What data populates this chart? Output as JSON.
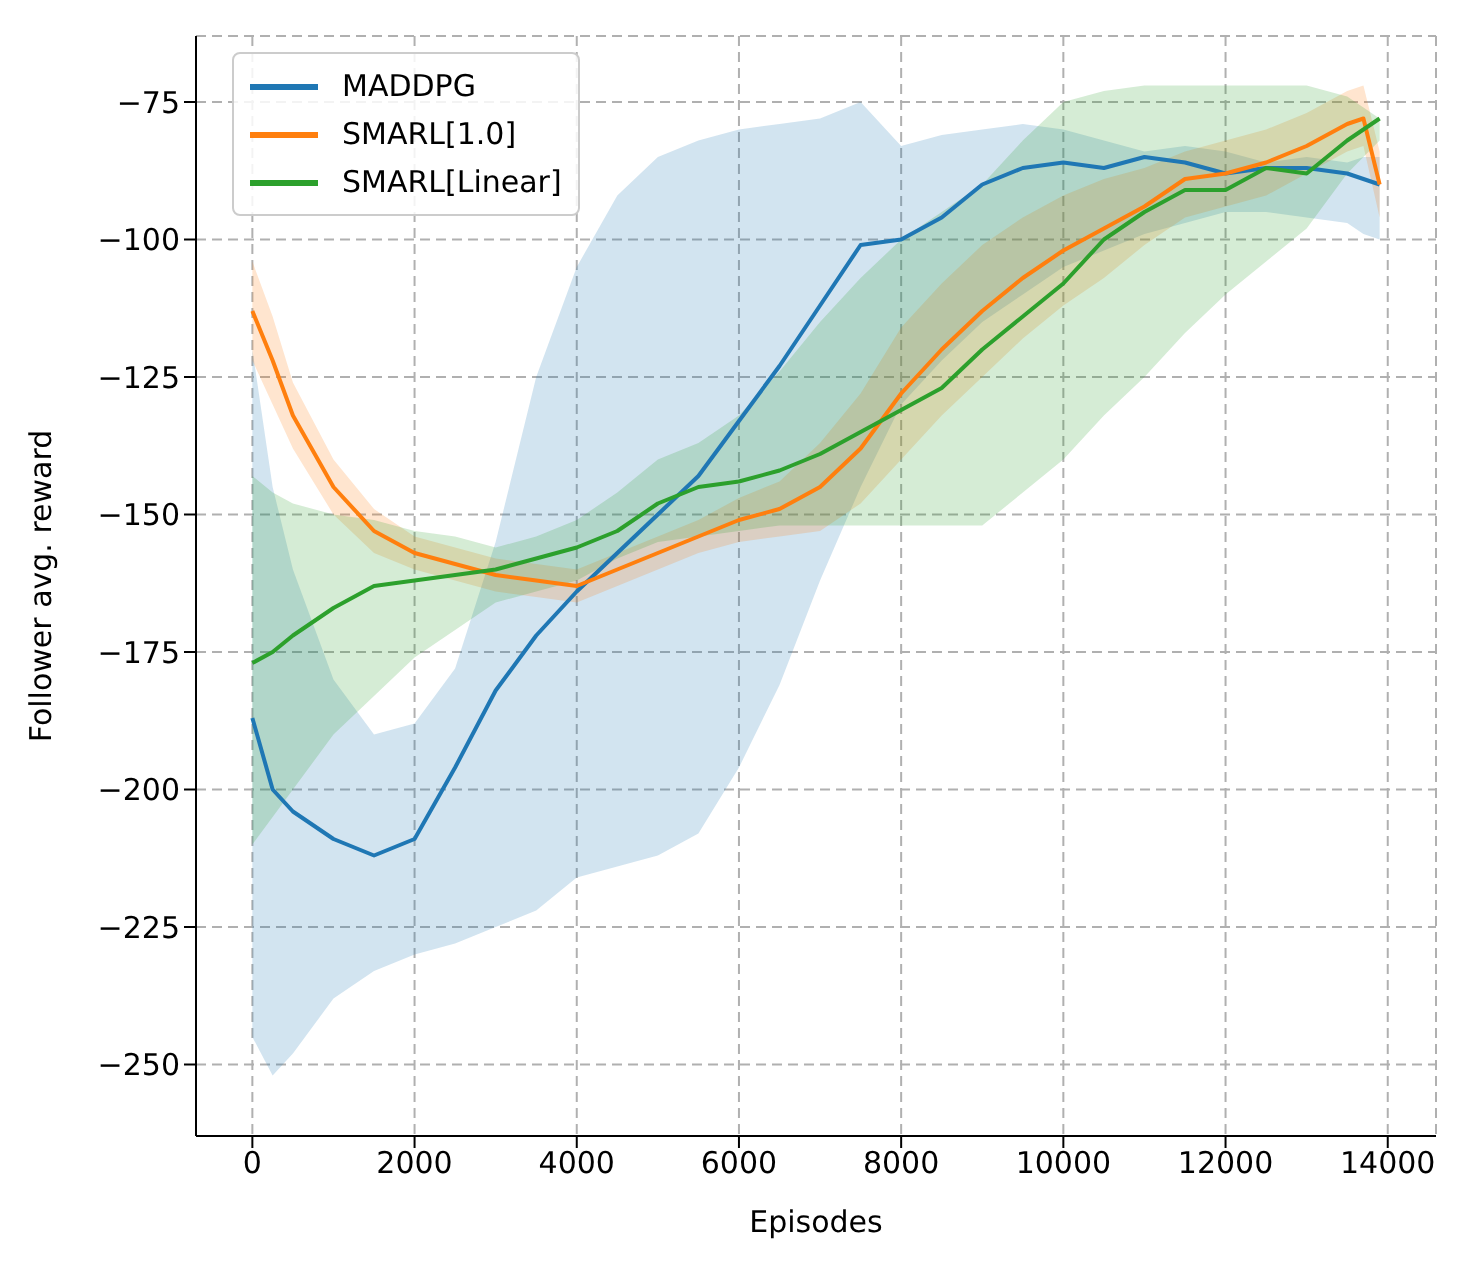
{
  "chart_data": {
    "type": "line",
    "xlabel": "Episodes",
    "ylabel": "Follower avg. reward",
    "x": [
      0,
      250,
      500,
      1000,
      1500,
      2000,
      2500,
      3000,
      3500,
      4000,
      4500,
      5000,
      5500,
      6000,
      6500,
      7000,
      7500,
      8000,
      8500,
      9000,
      9500,
      10000,
      10500,
      11000,
      11500,
      12000,
      12500,
      13000,
      13500,
      13700,
      13900
    ],
    "series": [
      {
        "name": "MADDPG",
        "color": "#1f77b4",
        "values": [
          -187,
          -200,
          -204,
          -209,
          -212,
          -209,
          -196,
          -182,
          -172,
          -164,
          -157,
          -150,
          -143,
          -133,
          -123,
          -112,
          -101,
          -100,
          -96,
          -90,
          -87,
          -86,
          -87,
          -85,
          -86,
          -88,
          -87,
          -87,
          -88,
          -89,
          -90
        ],
        "lower": [
          -245,
          -252,
          -248,
          -238,
          -233,
          -230,
          -228,
          -225,
          -222,
          -216,
          -214,
          -212,
          -208,
          -196,
          -181,
          -162,
          -145,
          -130,
          -122,
          -115,
          -110,
          -105,
          -102,
          -99,
          -97,
          -95,
          -95,
          -96,
          -97,
          -99,
          -100
        ],
        "upper": [
          -120,
          -145,
          -160,
          -180,
          -190,
          -188,
          -178,
          -155,
          -125,
          -105,
          -92,
          -85,
          -82,
          -80,
          -79,
          -78,
          -75,
          -83,
          -81,
          -80,
          -79,
          -80,
          -82,
          -84,
          -83,
          -84,
          -86,
          -85,
          -86,
          -85,
          -85
        ]
      },
      {
        "name": "SMARL[1.0]",
        "color": "#ff7f0e",
        "values": [
          -113,
          -122,
          -132,
          -145,
          -153,
          -157,
          -159,
          -161,
          -162,
          -163,
          -160,
          -157,
          -154,
          -151,
          -149,
          -145,
          -138,
          -128,
          -120,
          -113,
          -107,
          -102,
          -98,
          -94,
          -89,
          -88,
          -86,
          -83,
          -79,
          -78,
          -90
        ],
        "lower": [
          -122,
          -130,
          -138,
          -150,
          -157,
          -160,
          -162,
          -164,
          -165,
          -166,
          -163,
          -160,
          -157,
          -155,
          -154,
          -153,
          -148,
          -140,
          -132,
          -125,
          -118,
          -112,
          -107,
          -101,
          -96,
          -94,
          -92,
          -88,
          -84,
          -83,
          -96
        ],
        "upper": [
          -104,
          -114,
          -126,
          -140,
          -149,
          -154,
          -156,
          -158,
          -159,
          -160,
          -157,
          -154,
          -151,
          -147,
          -144,
          -137,
          -128,
          -116,
          -108,
          -101,
          -96,
          -92,
          -89,
          -87,
          -84,
          -82,
          -80,
          -77,
          -73,
          -72,
          -84
        ]
      },
      {
        "name": "SMARL[Linear]",
        "color": "#2ca02c",
        "values": [
          -177,
          -175,
          -172,
          -167,
          -163,
          -162,
          -161,
          -160,
          -158,
          -156,
          -153,
          -148,
          -145,
          -144,
          -142,
          -139,
          -135,
          -131,
          -127,
          -120,
          -114,
          -108,
          -100,
          -95,
          -91,
          -91,
          -87,
          -88,
          -82,
          -80,
          -78
        ],
        "lower": [
          -210,
          -205,
          -200,
          -190,
          -183,
          -176,
          -171,
          -166,
          -164,
          -162,
          -158,
          -155,
          -154,
          -153,
          -152,
          -152,
          -152,
          -152,
          -152,
          -152,
          -146,
          -140,
          -132,
          -125,
          -117,
          -110,
          -104,
          -98,
          -88,
          -85,
          -82
        ],
        "upper": [
          -143,
          -146,
          -148,
          -150,
          -151,
          -153,
          -154,
          -156,
          -154,
          -151,
          -146,
          -140,
          -137,
          -132,
          -124,
          -115,
          -107,
          -100,
          -95,
          -90,
          -82,
          -75,
          -73,
          -72,
          -72,
          -72,
          -72,
          -72,
          -74,
          -76,
          -78
        ]
      }
    ],
    "xlim": [
      -695,
      14595
    ],
    "xticks": [
      0,
      2000,
      4000,
      6000,
      8000,
      10000,
      12000,
      14000
    ],
    "ylim": [
      -263,
      -63
    ],
    "yticks": [
      {
        "value": -250,
        "label": "−250"
      },
      {
        "value": -225,
        "label": "−225"
      },
      {
        "value": -200,
        "label": "−200"
      },
      {
        "value": -175,
        "label": "−175"
      },
      {
        "value": -150,
        "label": "−150"
      },
      {
        "value": -125,
        "label": "−125"
      },
      {
        "value": -100,
        "label": "−100"
      },
      {
        "value": -75,
        "label": "−75"
      }
    ],
    "grid": true,
    "legend": "top left"
  }
}
